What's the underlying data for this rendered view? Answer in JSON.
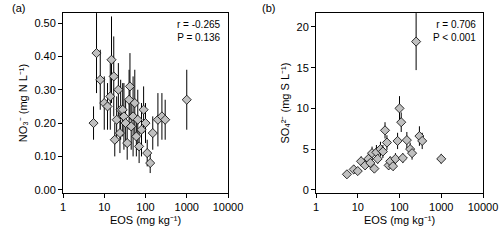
{
  "chart_data": [
    {
      "type": "scatter",
      "title": "(a)",
      "x_label": "EOS (mg kg⁻¹)",
      "y_label": "NO₃⁻ (mg N L⁻¹)",
      "annotations": [
        "r = -0.265",
        "P = 0.136"
      ],
      "log": "x",
      "grid": false,
      "marker": "diamond",
      "color": "#c0c0c0",
      "x": [
        5.5,
        6.5,
        8,
        10,
        12,
        14,
        15,
        17,
        18,
        20,
        22,
        24,
        25,
        28,
        30,
        33,
        36,
        40,
        42,
        45,
        50,
        55,
        60,
        65,
        70,
        80,
        90,
        100,
        110,
        130,
        150,
        200,
        250,
        300,
        1000
      ],
      "values": [
        0.2,
        0.41,
        0.33,
        0.26,
        0.25,
        0.28,
        0.39,
        0.34,
        0.15,
        0.21,
        0.3,
        0.17,
        0.24,
        0.24,
        0.22,
        0.2,
        0.14,
        0.27,
        0.31,
        0.19,
        0.22,
        0.26,
        0.16,
        0.21,
        0.13,
        0.18,
        0.24,
        0.2,
        0.11,
        0.08,
        0.17,
        0.21,
        0.22,
        0.21,
        0.27
      ],
      "error": [
        0.05,
        0.12,
        0.09,
        0.08,
        0.07,
        0.1,
        0.13,
        0.12,
        0.05,
        0.07,
        0.08,
        0.06,
        0.09,
        0.08,
        0.1,
        0.07,
        0.05,
        0.09,
        0.1,
        0.07,
        0.12,
        0.1,
        0.06,
        0.09,
        0.05,
        0.08,
        0.07,
        0.06,
        0.04,
        0.03,
        0.05,
        0.08,
        0.07,
        0.06,
        0.09
      ],
      "xlim": [
        1,
        10000
      ],
      "xticks": [
        1,
        10,
        100,
        1000,
        10000
      ],
      "ylim": [
        -0.01,
        0.53
      ],
      "yticks": [
        {
          "value": 0,
          "label": "0.00"
        },
        {
          "value": 0.1,
          "label": "0.10"
        },
        {
          "value": 0.2,
          "label": "0.20"
        },
        {
          "value": 0.3,
          "label": "0.30"
        },
        {
          "value": 0.4,
          "label": "0.40"
        },
        {
          "value": 0.5,
          "label": "0.50"
        }
      ]
    },
    {
      "type": "scatter",
      "title": "(b)",
      "x_label": "EOS (mg kg⁻¹)",
      "y_label": "SO₄²⁻ (mg S L⁻¹)",
      "annotations": [
        "r = 0.706",
        "P < 0.001"
      ],
      "log": "x",
      "grid": false,
      "marker": "diamond",
      "color": "#c0c0c0",
      "x": [
        5.5,
        8,
        10,
        12,
        15,
        18,
        20,
        22,
        25,
        28,
        30,
        35,
        40,
        45,
        50,
        55,
        60,
        70,
        80,
        90,
        100,
        110,
        120,
        150,
        180,
        200,
        250,
        300,
        350,
        1000
      ],
      "values": [
        1.9,
        2.5,
        2.3,
        3.5,
        3.0,
        3.8,
        3.3,
        4.5,
        2.6,
        4.6,
        3.8,
        5.0,
        4.7,
        7.3,
        5.8,
        3.0,
        3.5,
        2.9,
        3.8,
        6.0,
        10.0,
        8.3,
        3.9,
        6.1,
        5.0,
        4.5,
        18.2,
        6.6,
        6.0,
        3.8
      ],
      "error": [
        0.4,
        0.5,
        0.4,
        0.6,
        0.5,
        0.7,
        0.6,
        0.8,
        0.4,
        0.9,
        0.6,
        0.9,
        0.8,
        1.0,
        0.9,
        0.5,
        0.6,
        0.5,
        0.7,
        1.0,
        1.5,
        1.2,
        0.6,
        1.0,
        0.8,
        0.8,
        3.5,
        1.2,
        1.0,
        0.6
      ],
      "xlim": [
        1,
        10000
      ],
      "xticks": [
        1,
        10,
        100,
        1000,
        10000
      ],
      "ylim": [
        -0.4,
        21.7
      ],
      "yticks": [
        0,
        5,
        10,
        15,
        20
      ]
    }
  ]
}
